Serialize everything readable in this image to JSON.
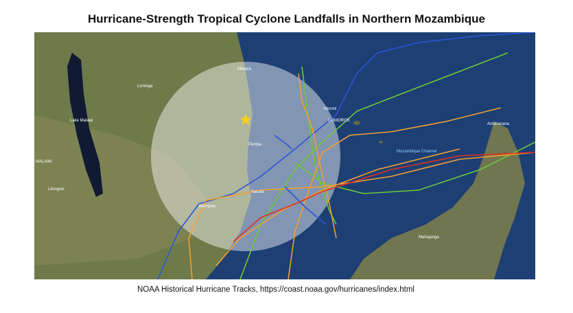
{
  "header": {
    "title": "Hurricane-Strength Tropical Cyclone Landfalls in Northern Mozambique"
  },
  "map": {
    "labels": [
      "MALAWI",
      "Lake Malawi",
      "COMOROS",
      "Moroni",
      "Pemba",
      "Nacala",
      "Mozambique Channel",
      "Antsiranana",
      "Mahajanga",
      "Mtwara",
      "Lichinga",
      "Nampula",
      "Lilongwe"
    ]
  },
  "caption": "NOAA Historical Hurricane Tracks, https://coast.noaa.gov/hurricanes/index.html"
}
